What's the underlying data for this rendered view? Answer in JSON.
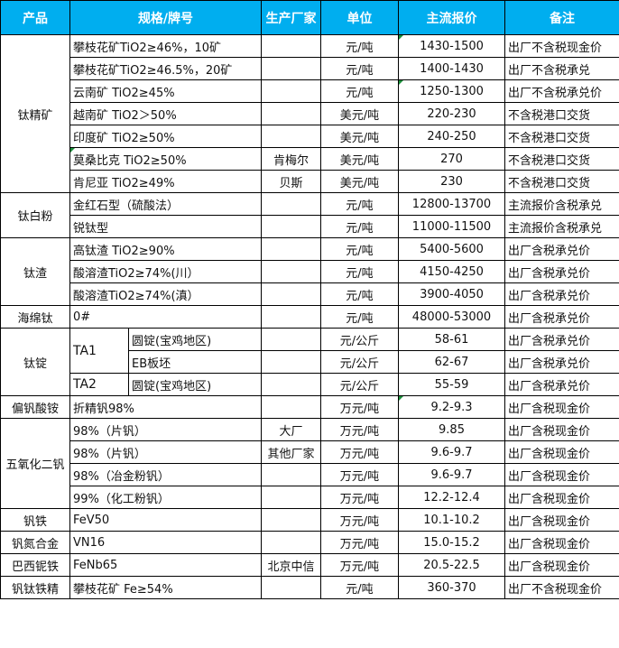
{
  "header": [
    "产品",
    "规格/牌号",
    "生产厂家",
    "单位",
    "主流报价",
    "备注"
  ],
  "colors": {
    "header_bg": "#00aeef",
    "comment_marker": "#1a8f3a"
  },
  "groups": [
    {
      "product": "钛精矿",
      "rows": [
        {
          "spec": "攀枝花矿TiO2≥46%，10矿",
          "maker": "",
          "unit": "元/吨",
          "price": "1430-1500",
          "note": "出厂不含税现金价",
          "price_marker": true
        },
        {
          "spec": "攀枝花矿TiO2≥46.5%，20矿",
          "maker": "",
          "unit": "元/吨",
          "price": "1400-1430",
          "note": "出厂不含税承兑"
        },
        {
          "spec": "云南矿 TiO2≥45%",
          "maker": "",
          "unit": "元/吨",
          "price": "1250-1300",
          "note": "出厂不含税承兑价",
          "price_marker": true
        },
        {
          "spec": "越南矿 TiO2＞50%",
          "maker": "",
          "unit": "美元/吨",
          "price": "220-230",
          "note": "不含税港口交货"
        },
        {
          "spec": "印度矿 TiO2≥50%",
          "maker": "",
          "unit": "美元/吨",
          "price": "240-250",
          "note": "不含税港口交货"
        },
        {
          "spec": "莫桑比克 TiO2≥50%",
          "maker": "肯梅尔",
          "unit": "美元/吨",
          "price": "270",
          "note": "不含税港口交货",
          "spec_marker": true
        },
        {
          "spec": "肯尼亚 TiO2≥49%",
          "maker": "贝斯",
          "unit": "美元/吨",
          "price": "230",
          "note": "不含税港口交货"
        }
      ]
    },
    {
      "product": "钛白粉",
      "rows": [
        {
          "spec": "金红石型（硫酸法）",
          "maker": "",
          "unit": "元/吨",
          "price": "12800-13700",
          "note": "主流报价含税承兑"
        },
        {
          "spec": "锐钛型",
          "maker": "",
          "unit": "元/吨",
          "price": "11000-11500",
          "note": "主流报价含税承兑"
        }
      ]
    },
    {
      "product": "钛渣",
      "rows": [
        {
          "spec": "高钛渣 TiO2≥90%",
          "maker": "",
          "unit": "元/吨",
          "price": "5400-5600",
          "note": "出厂含税承兑价"
        },
        {
          "spec": "酸溶渣TiO2≥74%(川）",
          "maker": "",
          "unit": "元/吨",
          "price": "4150-4250",
          "note": "出厂含税承兑价"
        },
        {
          "spec": "酸溶渣TiO2≥74%(滇）",
          "maker": "",
          "unit": "元/吨",
          "price": "3900-4050",
          "note": "出厂含税承兑价"
        }
      ]
    },
    {
      "product": "海绵钛",
      "rows": [
        {
          "spec": "0#",
          "maker": "",
          "unit": "元/吨",
          "price": "48000-53000",
          "note": "出厂含税承兑价"
        }
      ]
    },
    {
      "product": "钛锭",
      "rows": [
        {
          "grade": "TA1",
          "spec": "圆锭(宝鸡地区)",
          "maker": "",
          "unit": "元/公斤",
          "price": "58-61",
          "note": "出厂含税承兑价"
        },
        {
          "grade": "TA1",
          "spec": "EB板坯",
          "maker": "",
          "unit": "元/公斤",
          "price": "62-67",
          "note": "出厂含税承兑价"
        },
        {
          "grade": "TA2",
          "spec": "圆锭(宝鸡地区)",
          "maker": "",
          "unit": "元/公斤",
          "price": "55-59",
          "note": "出厂含税承兑价"
        }
      ]
    },
    {
      "product": "偏钒酸铵",
      "rows": [
        {
          "spec": "折精钒98%",
          "maker": "",
          "unit": "万元/吨",
          "price": "9.2-9.3",
          "note": "出厂含税现金价",
          "price_marker": true
        }
      ]
    },
    {
      "product": "五氧化二钒",
      "rows": [
        {
          "spec": "98%（片钒）",
          "maker": "大厂",
          "unit": "万元/吨",
          "price": "9.85",
          "note": "出厂含税现金价"
        },
        {
          "spec": "98%（片钒）",
          "maker": "其他厂家",
          "unit": "万元/吨",
          "price": "9.6-9.7",
          "note": "出厂含税现金价"
        },
        {
          "spec": "98%（冶金粉钒）",
          "maker": "",
          "unit": "万元/吨",
          "price": "9.6-9.7",
          "note": "出厂含税现金价"
        },
        {
          "spec": "99%（化工粉钒）",
          "maker": "",
          "unit": "万元/吨",
          "price": "12.2-12.4",
          "note": "出厂含税现金价"
        }
      ]
    },
    {
      "product": "钒铁",
      "rows": [
        {
          "spec": "FeV50",
          "maker": "",
          "unit": "万元/吨",
          "price": "10.1-10.2",
          "note": "出厂含税现金价"
        }
      ]
    },
    {
      "product": "钒氮合金",
      "rows": [
        {
          "spec": "VN16",
          "maker": "",
          "unit": "万元/吨",
          "price": "15.0-15.2",
          "note": "出厂含税现金价"
        }
      ]
    },
    {
      "product": "巴西铌铁",
      "rows": [
        {
          "spec": "FeNb65",
          "maker": "北京中信",
          "unit": "万元/吨",
          "price": "20.5-22.5",
          "note": "出厂含税现金价"
        }
      ]
    },
    {
      "product": "钒钛铁精",
      "rows": [
        {
          "spec": "攀枝花矿 Fe≥54%",
          "maker": "",
          "unit": "元/吨",
          "price": "360-370",
          "note": "出厂不含税现金价"
        }
      ]
    }
  ]
}
